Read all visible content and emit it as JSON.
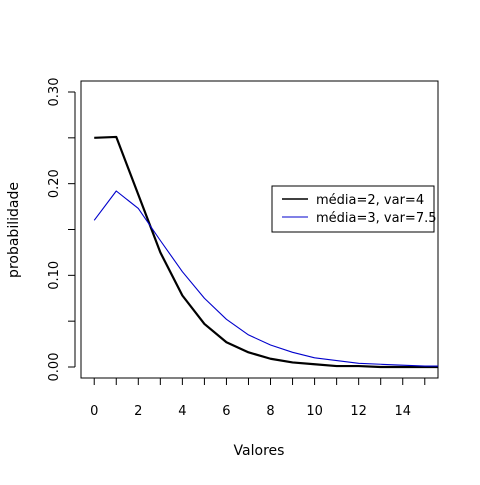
{
  "chart_data": {
    "type": "line",
    "title": "",
    "xlabel": "Valores",
    "ylabel": "probabilidade",
    "xlim": [
      -0.6,
      15.6
    ],
    "ylim": [
      -0.012,
      0.312
    ],
    "xticks": [
      0,
      2,
      4,
      6,
      8,
      10,
      12,
      14
    ],
    "xminor": [
      1,
      3,
      5,
      7,
      9,
      11,
      13,
      15
    ],
    "yticks": [
      0.0,
      0.1,
      0.2,
      0.3
    ],
    "yticklabels": [
      "0.00",
      "0.10",
      "0.20",
      "0.30"
    ],
    "yminor": [
      0.05,
      0.15,
      0.25
    ],
    "grid": false,
    "legend_position": "right",
    "x": [
      0,
      1,
      2,
      3,
      4,
      5,
      6,
      7,
      8,
      9,
      10,
      11,
      12,
      13,
      14,
      15,
      16
    ],
    "series": [
      {
        "name": "média=2, var=4",
        "color": "#000000",
        "values": [
          0.25,
          0.251,
          0.188,
          0.125,
          0.078,
          0.047,
          0.027,
          0.016,
          0.009,
          0.005,
          0.003,
          0.001,
          0.001,
          0.0,
          0.0,
          0.0,
          0.0
        ]
      },
      {
        "name": "média=3, var=7.5",
        "color": "#0000cc",
        "values": [
          0.16,
          0.192,
          0.173,
          0.138,
          0.104,
          0.075,
          0.052,
          0.035,
          0.024,
          0.016,
          0.01,
          0.007,
          0.004,
          0.003,
          0.002,
          0.001,
          0.001
        ]
      }
    ]
  }
}
